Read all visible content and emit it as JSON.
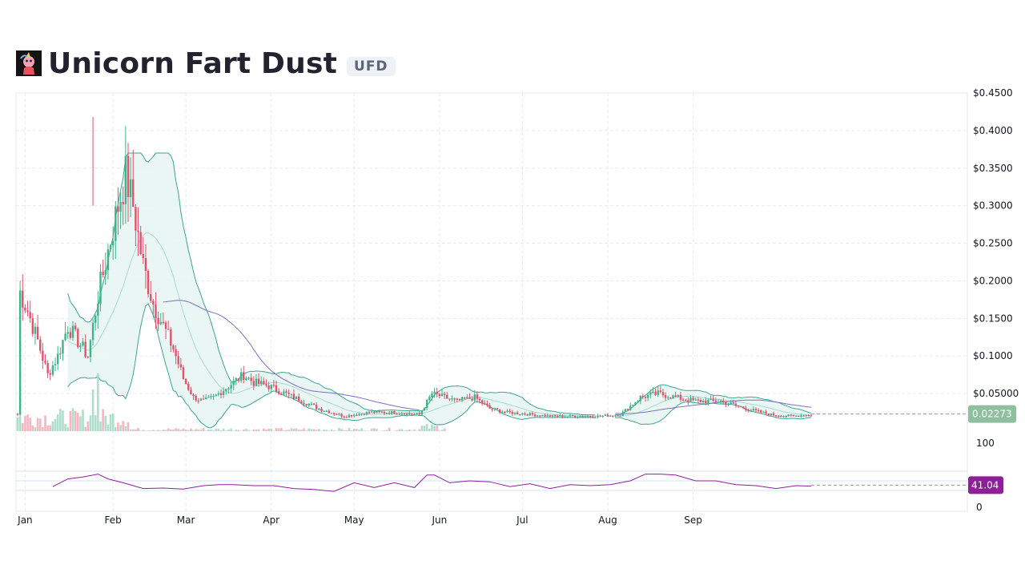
{
  "header": {
    "name": "Unicorn Fart Dust",
    "ticker": "UFD"
  },
  "colors": {
    "up": "#26a69a",
    "up_candle": "#3eb489",
    "down": "#e0536a",
    "bb_line": "#3aa78f",
    "bb_fill": "#e8f5f3",
    "bb_mid": "#a6dcd0",
    "ma_line": "#7a6fc2",
    "rsi_line": "#8e1f99",
    "price_badge": "#8fbf9f",
    "rsi_badge": "#8e1f99",
    "grid": "#e6eaf2"
  },
  "chart_data": {
    "type": "candlestick",
    "price_axis": {
      "ticks": [
        "$0.4500",
        "$0.4000",
        "$0.3500",
        "$0.3000",
        "$0.2500",
        "$0.2000",
        "$0.1500",
        "$0.1000",
        "$0.05000"
      ],
      "ylim": [
        0.0,
        0.45
      ]
    },
    "x_axis": {
      "ticks": [
        "Jan",
        "Feb",
        "Mar",
        "Apr",
        "May",
        "Jun",
        "Jul",
        "Aug",
        "Sep"
      ]
    },
    "current_price_label": "0.02273",
    "price_series": [
      {
        "d": 1,
        "close": 0.185
      },
      {
        "d": 4,
        "close": 0.16
      },
      {
        "d": 8,
        "close": 0.12
      },
      {
        "d": 12,
        "close": 0.075
      },
      {
        "d": 16,
        "close": 0.1
      },
      {
        "d": 20,
        "close": 0.14
      },
      {
        "d": 24,
        "close": 0.12
      },
      {
        "d": 28,
        "close": 0.1
      },
      {
        "d": 32,
        "close": 0.18
      },
      {
        "d": 36,
        "close": 0.24
      },
      {
        "d": 40,
        "close": 0.3
      },
      {
        "d": 43,
        "close": 0.34
      },
      {
        "d": 46,
        "close": 0.3
      },
      {
        "d": 50,
        "close": 0.22
      },
      {
        "d": 54,
        "close": 0.17
      },
      {
        "d": 58,
        "close": 0.14
      },
      {
        "d": 62,
        "close": 0.11
      },
      {
        "d": 66,
        "close": 0.07
      },
      {
        "d": 70,
        "close": 0.045
      },
      {
        "d": 74,
        "close": 0.04
      },
      {
        "d": 78,
        "close": 0.045
      },
      {
        "d": 82,
        "close": 0.055
      },
      {
        "d": 86,
        "close": 0.065
      },
      {
        "d": 90,
        "close": 0.075
      },
      {
        "d": 94,
        "close": 0.065
      },
      {
        "d": 100,
        "close": 0.06
      },
      {
        "d": 110,
        "close": 0.045
      },
      {
        "d": 120,
        "close": 0.03
      },
      {
        "d": 130,
        "close": 0.02
      },
      {
        "d": 140,
        "close": 0.025
      },
      {
        "d": 150,
        "close": 0.025
      },
      {
        "d": 160,
        "close": 0.022
      },
      {
        "d": 165,
        "close": 0.05
      },
      {
        "d": 170,
        "close": 0.045
      },
      {
        "d": 175,
        "close": 0.04
      },
      {
        "d": 182,
        "close": 0.045
      },
      {
        "d": 188,
        "close": 0.03
      },
      {
        "d": 195,
        "close": 0.025
      },
      {
        "d": 205,
        "close": 0.022
      },
      {
        "d": 212,
        "close": 0.02
      },
      {
        "d": 222,
        "close": 0.02
      },
      {
        "d": 232,
        "close": 0.02
      },
      {
        "d": 240,
        "close": 0.022
      },
      {
        "d": 248,
        "close": 0.045
      },
      {
        "d": 255,
        "close": 0.05
      },
      {
        "d": 262,
        "close": 0.045
      },
      {
        "d": 270,
        "close": 0.04
      },
      {
        "d": 280,
        "close": 0.04
      },
      {
        "d": 290,
        "close": 0.03
      },
      {
        "d": 300,
        "close": 0.022
      },
      {
        "d": 308,
        "close": 0.02
      },
      {
        "d": 316,
        "close": 0.022
      }
    ],
    "rsi": {
      "ticks": [
        "100",
        "0"
      ],
      "ylim": [
        0,
        100
      ],
      "current_label": "41.04",
      "values": [
        {
          "d": 14,
          "v": 40
        },
        {
          "d": 20,
          "v": 52
        },
        {
          "d": 26,
          "v": 60
        },
        {
          "d": 32,
          "v": 62
        },
        {
          "d": 36,
          "v": 56
        },
        {
          "d": 42,
          "v": 44
        },
        {
          "d": 50,
          "v": 36
        },
        {
          "d": 58,
          "v": 33
        },
        {
          "d": 66,
          "v": 35
        },
        {
          "d": 74,
          "v": 38
        },
        {
          "d": 80,
          "v": 44
        },
        {
          "d": 86,
          "v": 40
        },
        {
          "d": 94,
          "v": 42
        },
        {
          "d": 102,
          "v": 38
        },
        {
          "d": 110,
          "v": 36
        },
        {
          "d": 118,
          "v": 30
        },
        {
          "d": 126,
          "v": 30
        },
        {
          "d": 134,
          "v": 44
        },
        {
          "d": 142,
          "v": 38
        },
        {
          "d": 150,
          "v": 44
        },
        {
          "d": 158,
          "v": 38
        },
        {
          "d": 163,
          "v": 60
        },
        {
          "d": 166,
          "v": 64
        },
        {
          "d": 172,
          "v": 44
        },
        {
          "d": 180,
          "v": 52
        },
        {
          "d": 188,
          "v": 46
        },
        {
          "d": 196,
          "v": 40
        },
        {
          "d": 204,
          "v": 42
        },
        {
          "d": 212,
          "v": 36
        },
        {
          "d": 220,
          "v": 40
        },
        {
          "d": 228,
          "v": 42
        },
        {
          "d": 236,
          "v": 40
        },
        {
          "d": 244,
          "v": 52
        },
        {
          "d": 250,
          "v": 62
        },
        {
          "d": 256,
          "v": 66
        },
        {
          "d": 262,
          "v": 60
        },
        {
          "d": 270,
          "v": 52
        },
        {
          "d": 278,
          "v": 48
        },
        {
          "d": 286,
          "v": 44
        },
        {
          "d": 294,
          "v": 38
        },
        {
          "d": 302,
          "v": 36
        },
        {
          "d": 310,
          "v": 38
        },
        {
          "d": 316,
          "v": 41
        }
      ]
    }
  }
}
